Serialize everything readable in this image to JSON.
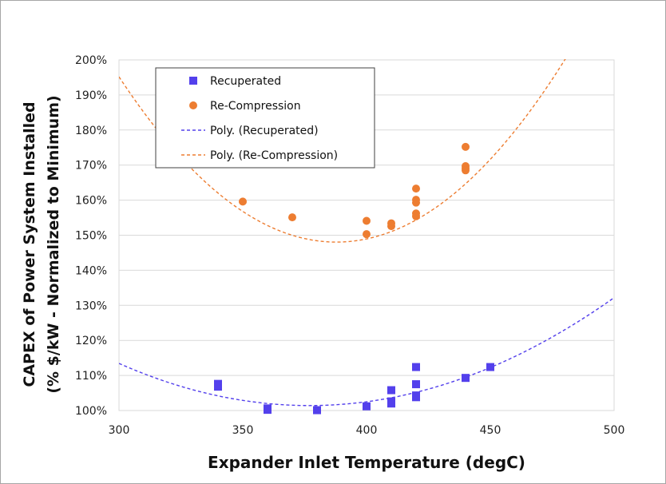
{
  "chart_data": {
    "type": "scatter",
    "xlabel": "Expander Inlet Temperature (degC)",
    "ylabel_line1": "CAPEX of Power System Installed",
    "ylabel_line2": "(%  $/kW - Normalized to Minimum)",
    "xlim": [
      300,
      500
    ],
    "ylim": [
      100,
      200
    ],
    "x_ticks": [
      300,
      350,
      400,
      450,
      500
    ],
    "y_ticks": [
      100,
      110,
      120,
      130,
      140,
      150,
      160,
      170,
      180,
      190,
      200
    ],
    "y_tick_labels": [
      "100%",
      "110%",
      "120%",
      "130%",
      "140%",
      "150%",
      "160%",
      "170%",
      "180%",
      "190%",
      "200%"
    ],
    "grid": "horizontal",
    "legend_position": "top-left",
    "series": [
      {
        "name": "Recuperated",
        "marker": "square",
        "color": "#5340ec",
        "points": [
          [
            340,
            107.6
          ],
          [
            340,
            106.8
          ],
          [
            360,
            100.6
          ],
          [
            360,
            100.2
          ],
          [
            380,
            100.1
          ],
          [
            400,
            101.2
          ],
          [
            410,
            105.8
          ],
          [
            410,
            102.0
          ],
          [
            410,
            102.6
          ],
          [
            420,
            112.4
          ],
          [
            420,
            107.5
          ],
          [
            420,
            104.3
          ],
          [
            420,
            103.8
          ],
          [
            440,
            109.3
          ],
          [
            450,
            112.4
          ]
        ]
      },
      {
        "name": "Re-Compression",
        "marker": "circle",
        "color": "#ed7d31",
        "points": [
          [
            350,
            159.6
          ],
          [
            370,
            155.1
          ],
          [
            400,
            154.1
          ],
          [
            400,
            150.3
          ],
          [
            410,
            153.4
          ],
          [
            410,
            152.6
          ],
          [
            420,
            163.3
          ],
          [
            420,
            160.1
          ],
          [
            420,
            159.3
          ],
          [
            420,
            156.2
          ],
          [
            420,
            155.4
          ],
          [
            440,
            175.2
          ],
          [
            440,
            169.7
          ],
          [
            440,
            169.1
          ],
          [
            440,
            168.5
          ]
        ]
      }
    ],
    "trendlines": [
      {
        "name": "Poly. (Recuperated)",
        "type": "poly2",
        "color": "#5340ec",
        "dash": "dashed",
        "coef": [
          390.0,
          -1.53125,
          0.00203125
        ],
        "x_range": [
          300,
          500
        ]
      },
      {
        "name": "Poly. (Re-Compression)",
        "type": "poly2",
        "color": "#ed7d31",
        "dash": "dashed",
        "coef": [
          1067.26,
          -4.7402,
          0.006111
        ],
        "x_range": [
          300,
          500
        ]
      }
    ]
  }
}
